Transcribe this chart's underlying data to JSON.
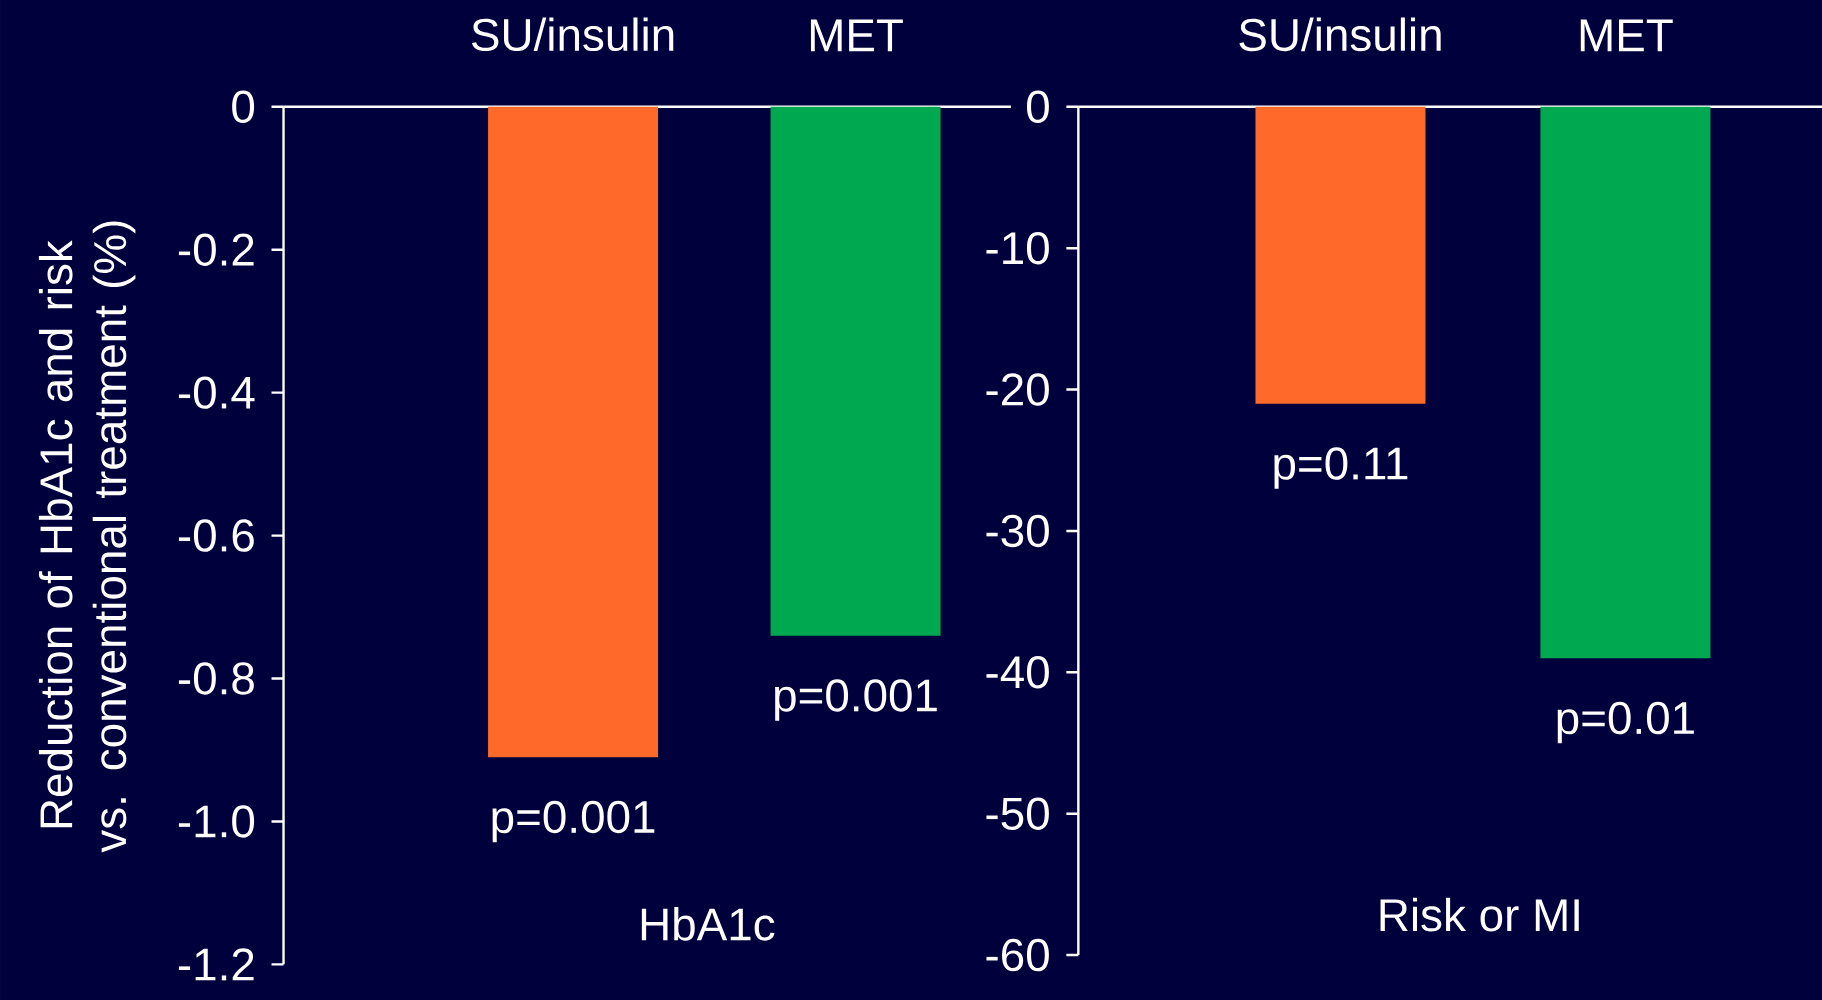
{
  "chart_data": [
    {
      "type": "bar",
      "categories": [
        "SU/insulin",
        "MET"
      ],
      "values": [
        -0.91,
        -0.74
      ],
      "colors": [
        "#ff6a2b",
        "#00a84f"
      ],
      "xlabel": "HbA1c",
      "ylabel": "Reduction of HbA1c and risk vs. conventional treatment (%)",
      "ylim": [
        -1.2,
        0
      ],
      "yticks": [
        0,
        -0.2,
        -0.4,
        -0.6,
        -0.8,
        {
          "value": -1.0,
          "label": "-1.0"
        },
        -1.2
      ],
      "annotations": [
        {
          "text": "p=0.001",
          "x": "SU/insulin",
          "y": -0.91
        },
        {
          "text": "p=0.001",
          "x": "MET",
          "y": -0.74
        }
      ]
    },
    {
      "type": "bar",
      "categories": [
        "SU/insulin",
        "MET"
      ],
      "values": [
        -21,
        -39
      ],
      "colors": [
        "#ff6a2b",
        "#00a84f"
      ],
      "xlabel": "Risk or MI",
      "ylim": [
        -60,
        0
      ],
      "yticks": [
        0,
        -10,
        -20,
        -30,
        -40,
        -50,
        -60
      ],
      "annotations": [
        {
          "text": "p=0.11",
          "x": "SU/insulin",
          "y": -21
        },
        {
          "text": "p=0.01",
          "x": "MET",
          "y": -39
        }
      ]
    }
  ]
}
